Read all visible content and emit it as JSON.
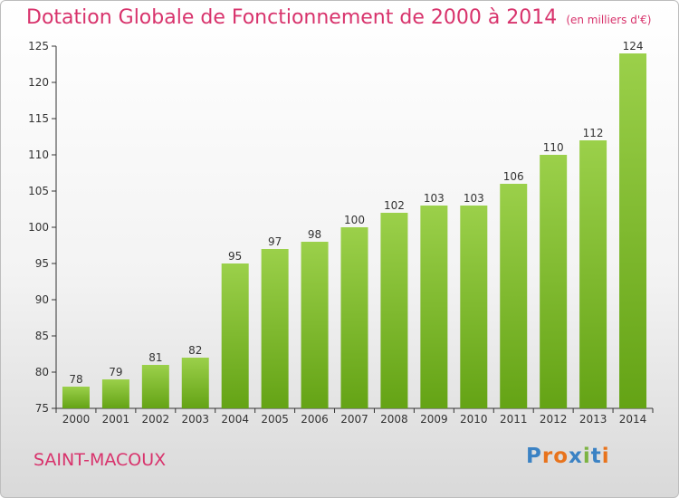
{
  "title": "Dotation Globale de Fonctionnement de 2000 à 2014",
  "unit": "(en milliers d'€)",
  "commune": "SAINT-MACOUX",
  "logo": {
    "text": "Proxiti",
    "colors": [
      "#3b82c4",
      "#e8731c",
      "#e8731c",
      "#3b82c4",
      "#7cb342",
      "#3b82c4",
      "#e8731c"
    ]
  },
  "colors": {
    "title": "#d8336c",
    "bar_light": "#9bd04a",
    "bar_dark": "#64a315",
    "axis": "#333333",
    "grid": "#cccccc"
  },
  "chart_data": {
    "type": "bar",
    "categories": [
      "2000",
      "2001",
      "2002",
      "2003",
      "2004",
      "2005",
      "2006",
      "2007",
      "2008",
      "2009",
      "2010",
      "2011",
      "2012",
      "2013",
      "2014"
    ],
    "values": [
      78,
      79,
      81,
      82,
      95,
      97,
      98,
      100,
      102,
      103,
      103,
      106,
      110,
      112,
      124
    ],
    "title": "Dotation Globale de Fonctionnement de 2000 à 2014",
    "xlabel": "",
    "ylabel": "",
    "ylim": [
      75,
      125
    ],
    "yticks": [
      75,
      80,
      85,
      90,
      95,
      100,
      105,
      110,
      115,
      120,
      125
    ],
    "data_labels": true,
    "grid": false
  }
}
